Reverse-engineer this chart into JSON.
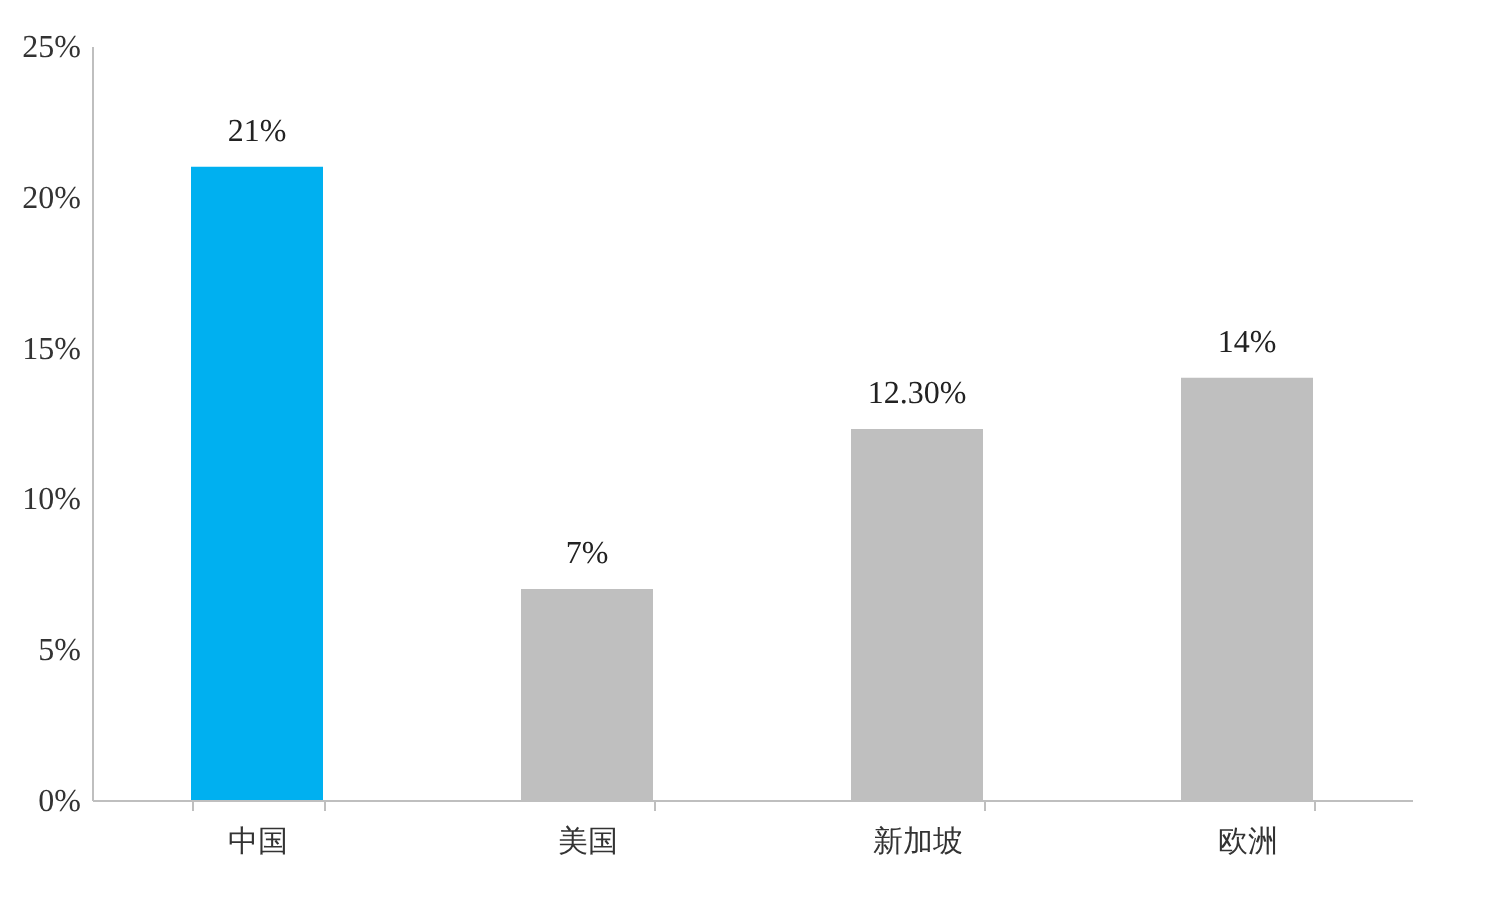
{
  "chart_data": {
    "type": "bar",
    "categories": [
      "中国",
      "美国",
      "新加坡",
      "欧洲"
    ],
    "values": [
      21,
      7,
      12.3,
      14
    ],
    "colors": [
      "#00b0f0",
      "#bfbfbf",
      "#bfbfbf",
      "#bfbfbf"
    ],
    "value_labels": [
      "21%",
      "7%",
      "12.30%",
      "14%"
    ],
    "ylim": [
      0,
      25
    ],
    "yticks": [
      {
        "value": 0,
        "label": "0%"
      },
      {
        "value": 5,
        "label": "5%"
      },
      {
        "value": 10,
        "label": "10%"
      },
      {
        "value": 15,
        "label": "15%"
      },
      {
        "value": 20,
        "label": "20%"
      },
      {
        "value": 25,
        "label": "25%"
      }
    ],
    "grid": false
  }
}
